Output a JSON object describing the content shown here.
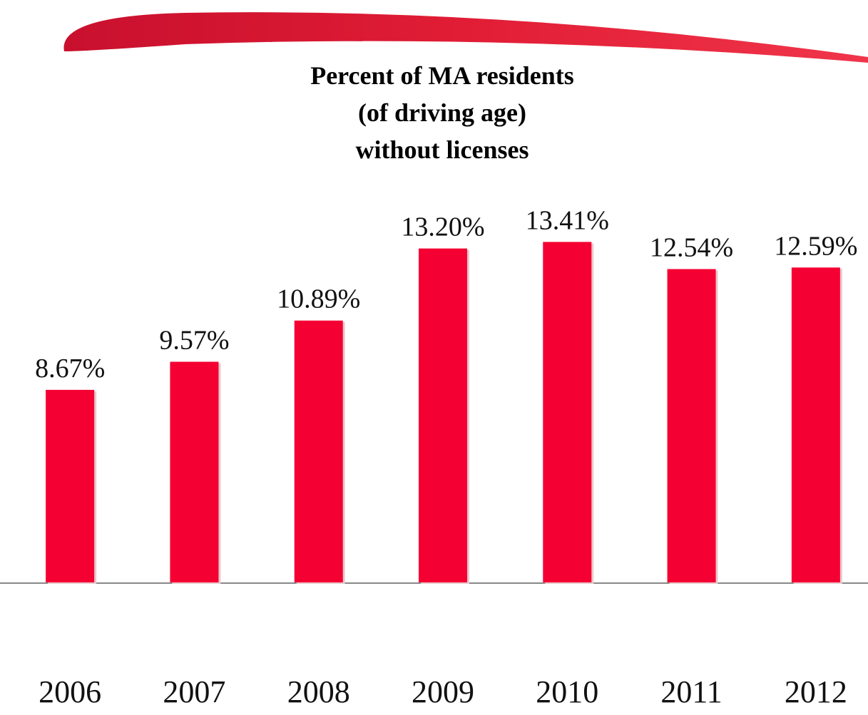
{
  "chart_data": {
    "type": "bar",
    "title": [
      "Percent of MA residents",
      "(of driving age)",
      "without licenses"
    ],
    "categories": [
      "2006",
      "2007",
      "2008",
      "2009",
      "2010",
      "2011",
      "2012"
    ],
    "values": [
      8.67,
      9.57,
      10.89,
      13.2,
      13.41,
      12.54,
      12.59
    ],
    "value_labels": [
      "8.67%",
      "9.57%",
      "10.89%",
      "13.20%",
      "13.41%",
      "12.54%",
      "12.59%"
    ],
    "color": "#f50032",
    "ylim": [
      2.5,
      16
    ]
  }
}
